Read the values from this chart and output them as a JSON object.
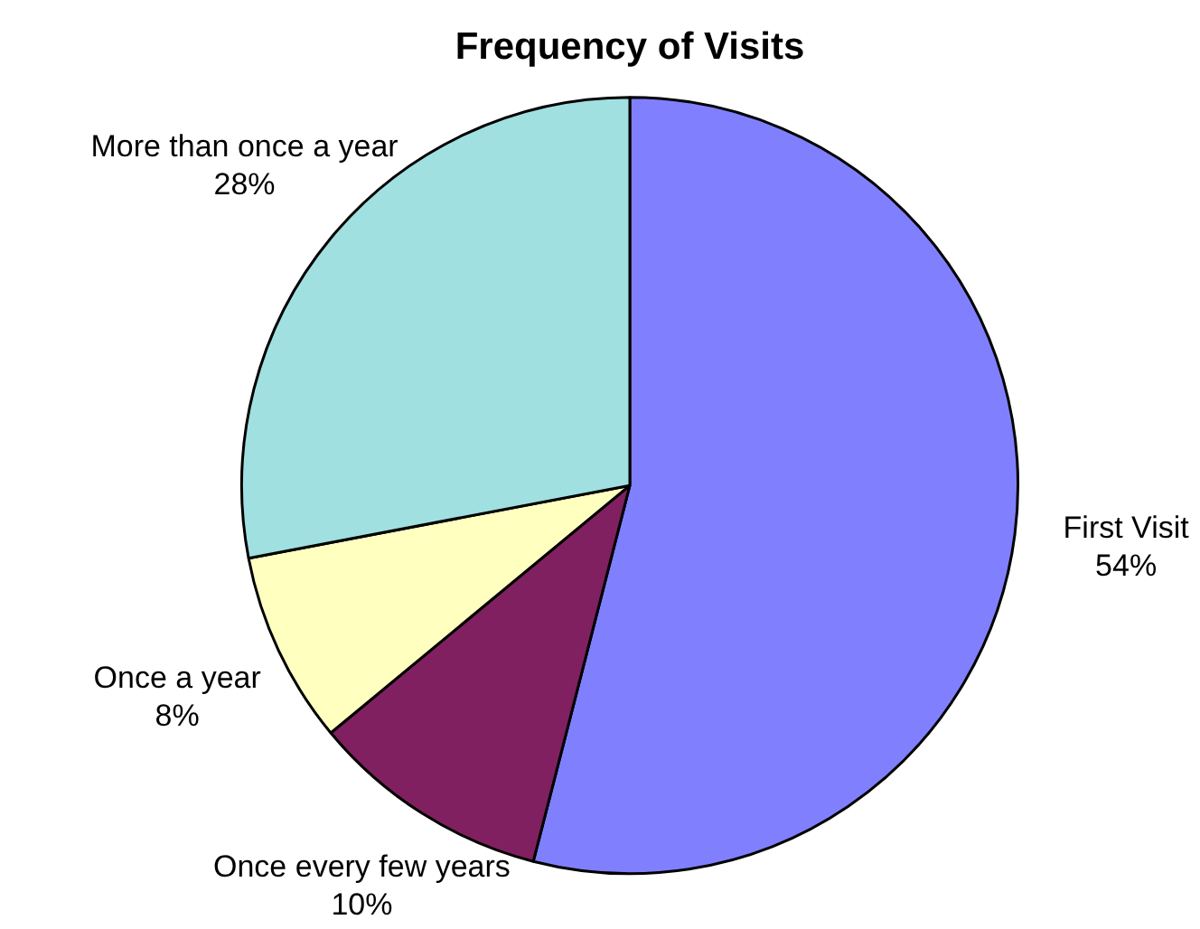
{
  "chart_data": {
    "type": "pie",
    "title": "Frequency of Visits",
    "categories": [
      "First Visit",
      "Once every few years",
      "Once a year",
      "More than once a year"
    ],
    "values": [
      54,
      10,
      8,
      28
    ],
    "value_labels": [
      "54%",
      "10%",
      "8%",
      "28%"
    ],
    "colors": [
      "#8080ff",
      "#802060",
      "#ffffc0",
      "#a0e0e0"
    ],
    "legend": false
  }
}
